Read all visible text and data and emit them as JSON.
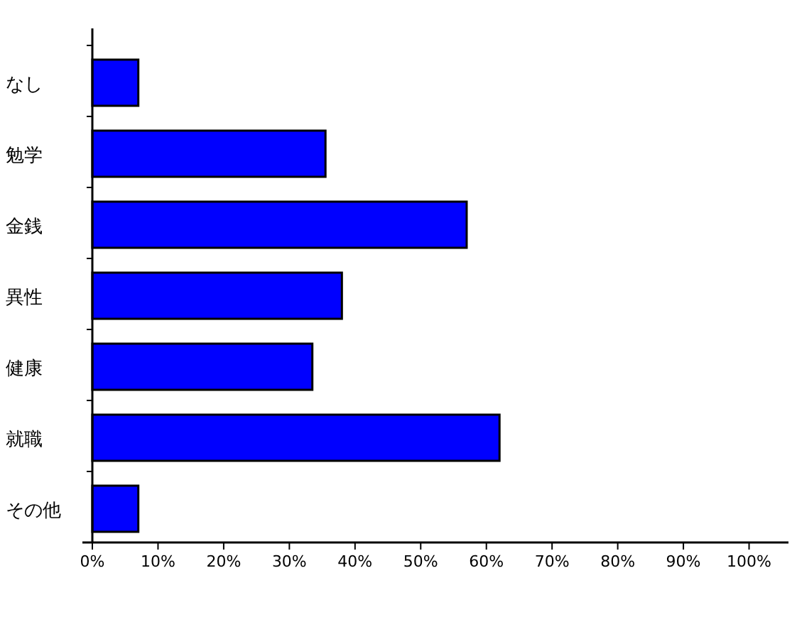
{
  "chart_data": {
    "type": "bar",
    "orientation": "horizontal",
    "categories": [
      "なし",
      "勉学",
      "金銭",
      "異性",
      "健康",
      "就職",
      "その他"
    ],
    "values": [
      7,
      35.5,
      57,
      38,
      33.5,
      62,
      7
    ],
    "color": "#0000ff",
    "xlim": [
      0,
      106
    ],
    "xticks": [
      {
        "value": 0,
        "label": "0%"
      },
      {
        "value": 10,
        "label": "10%"
      },
      {
        "value": 20,
        "label": "20%"
      },
      {
        "value": 30,
        "label": "30%"
      },
      {
        "value": 40,
        "label": "40%"
      },
      {
        "value": 50,
        "label": "50%"
      },
      {
        "value": 60,
        "label": "60%"
      },
      {
        "value": 70,
        "label": "70%"
      },
      {
        "value": 80,
        "label": "80%"
      },
      {
        "value": 90,
        "label": "90%"
      },
      {
        "value": 100,
        "label": "100%"
      }
    ],
    "grid": false
  }
}
